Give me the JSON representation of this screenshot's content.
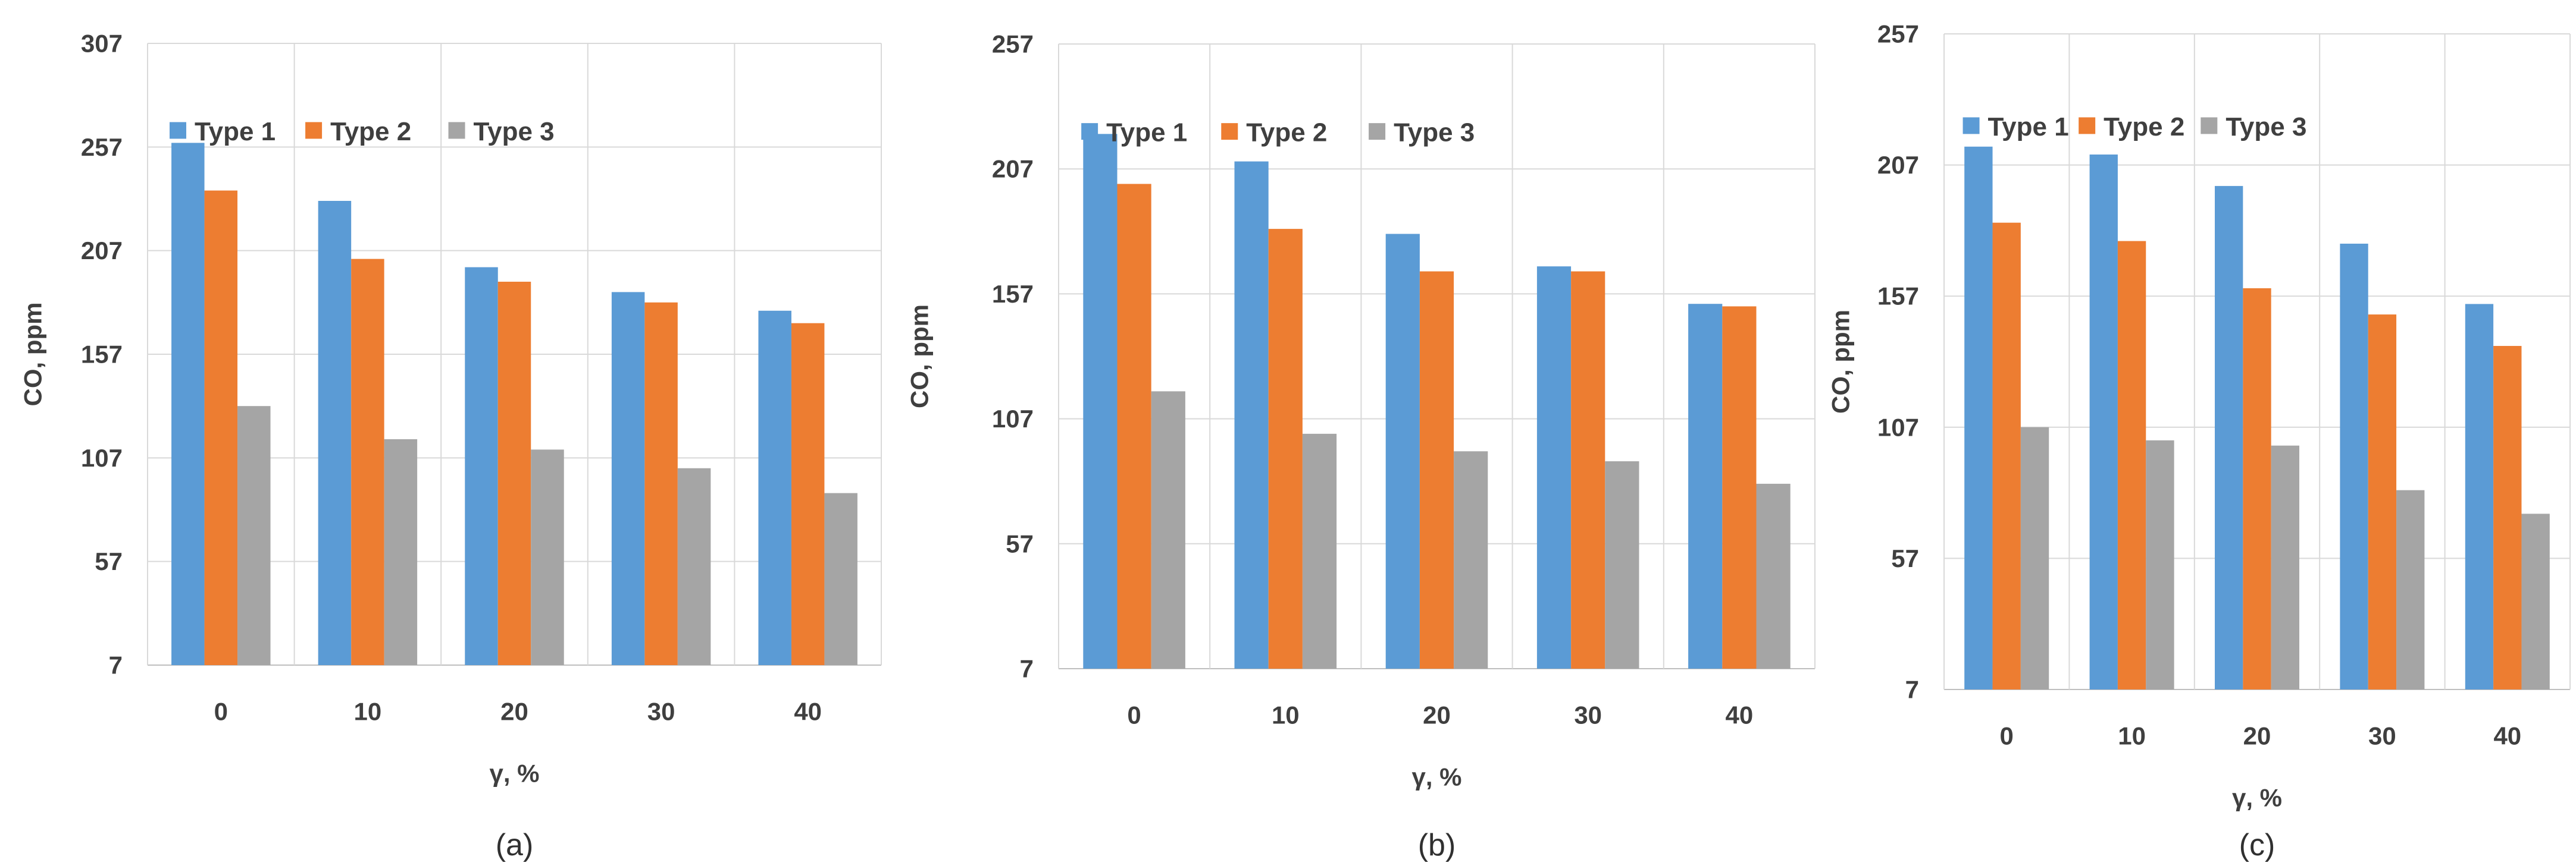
{
  "figure": {
    "background": "#FFFFFF",
    "text_color": "#3F3F3F",
    "caption_color": "#303030",
    "grid_color": "#D9D9D9",
    "axis_color": "#BFBFBF",
    "legend_labels": [
      "Type 1",
      "Type 2",
      "Type 3"
    ],
    "series_colors": {
      "Type 1": "#5B9BD5",
      "Type 2": "#ED7D31",
      "Type 3": "#A5A5A5"
    }
  },
  "chart_data": [
    {
      "id": "a",
      "type": "bar",
      "caption": "(a)",
      "title": "",
      "xlabel": "γ, %",
      "ylabel": "CO, ppm",
      "categories": [
        "0",
        "10",
        "20",
        "30",
        "40"
      ],
      "ylim": [
        7,
        307
      ],
      "yticks": [
        7,
        57,
        107,
        157,
        207,
        257,
        307
      ],
      "grid": true,
      "legend_position": "top-inside",
      "series": [
        {
          "name": "Type 1",
          "color": "#5B9BD5",
          "values": [
            259,
            231,
            199,
            187,
            178
          ]
        },
        {
          "name": "Type 2",
          "color": "#ED7D31",
          "values": [
            236,
            203,
            192,
            182,
            172
          ]
        },
        {
          "name": "Type 3",
          "color": "#A5A5A5",
          "values": [
            132,
            116,
            111,
            102,
            90
          ]
        }
      ]
    },
    {
      "id": "b",
      "type": "bar",
      "caption": "(b)",
      "title": "",
      "xlabel": "γ, %",
      "ylabel": "CO, ppm",
      "categories": [
        "0",
        "10",
        "20",
        "30",
        "40"
      ],
      "ylim": [
        7,
        257
      ],
      "yticks": [
        7,
        57,
        107,
        157,
        207,
        257
      ],
      "grid": true,
      "legend_position": "top-inside",
      "series": [
        {
          "name": "Type 1",
          "color": "#5B9BD5",
          "values": [
            221,
            210,
            181,
            168,
            153
          ]
        },
        {
          "name": "Type 2",
          "color": "#ED7D31",
          "values": [
            201,
            183,
            166,
            166,
            152
          ]
        },
        {
          "name": "Type 3",
          "color": "#A5A5A5",
          "values": [
            118,
            101,
            94,
            90,
            81
          ]
        }
      ]
    },
    {
      "id": "c",
      "type": "bar",
      "caption": "(c)",
      "title": "",
      "xlabel": "γ, %",
      "ylabel": "CO, ppm",
      "categories": [
        "0",
        "10",
        "20",
        "30",
        "40"
      ],
      "ylim": [
        7,
        257
      ],
      "yticks": [
        7,
        57,
        107,
        157,
        207,
        257
      ],
      "grid": true,
      "legend_position": "top-inside",
      "series": [
        {
          "name": "Type 1",
          "color": "#5B9BD5",
          "values": [
            214,
            211,
            199,
            177,
            154
          ]
        },
        {
          "name": "Type 2",
          "color": "#ED7D31",
          "values": [
            185,
            178,
            160,
            150,
            138
          ]
        },
        {
          "name": "Type 3",
          "color": "#A5A5A5",
          "values": [
            107,
            102,
            100,
            83,
            74
          ]
        }
      ]
    }
  ]
}
